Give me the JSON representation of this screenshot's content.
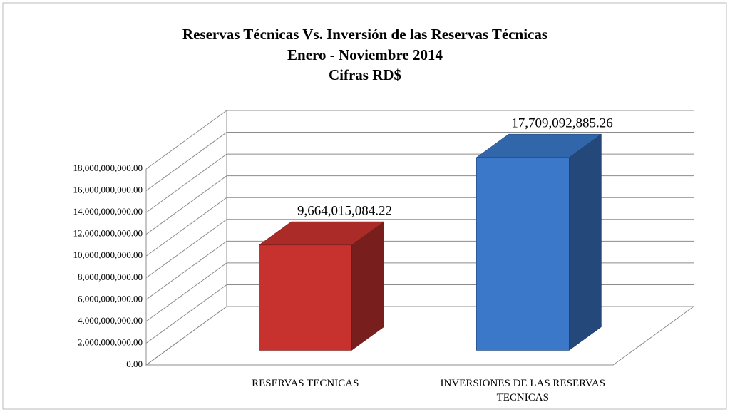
{
  "chart_data": {
    "type": "bar3d",
    "title": "Reservas Técnicas  Vs. Inversión  de las Reservas Técnicas",
    "subtitle": [
      "Enero - Noviembre 2014",
      "Cifras RD$"
    ],
    "categories": [
      "RESERVAS TECNICAS",
      "INVERSIONES DE LAS RESERVAS TECNICAS"
    ],
    "values": [
      9664015084.22,
      17709092885.26
    ],
    "value_labels": [
      "9,664,015,084.22",
      "17,709,092,885.26"
    ],
    "colors": [
      "#c8322e",
      "#3b78c9"
    ],
    "ylim": [
      0,
      18000000000
    ],
    "yticks": [
      {
        "value": 0,
        "label": "0.00"
      },
      {
        "value": 2000000000,
        "label": "2,000,000,000.00"
      },
      {
        "value": 4000000000,
        "label": "4,000,000,000.00"
      },
      {
        "value": 6000000000,
        "label": "6,000,000,000.00"
      },
      {
        "value": 8000000000,
        "label": "8,000,000,000.00"
      },
      {
        "value": 10000000000,
        "label": "10,000,000,000.00"
      },
      {
        "value": 12000000000,
        "label": "12,000,000,000.00"
      },
      {
        "value": 14000000000,
        "label": "14,000,000,000.00"
      },
      {
        "value": 16000000000,
        "label": "16,000,000,000.00"
      },
      {
        "value": 18000000000,
        "label": "18,000,000,000.00"
      }
    ],
    "grid": true
  }
}
